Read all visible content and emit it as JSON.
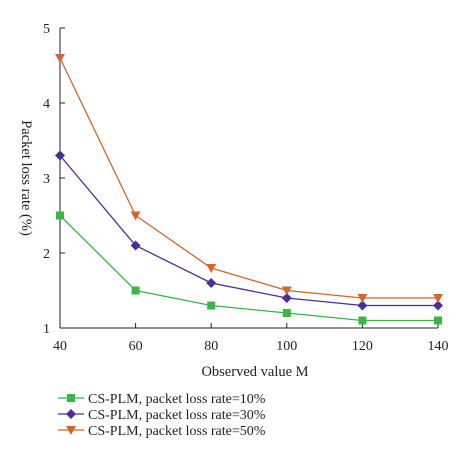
{
  "chart_data": {
    "type": "line",
    "xlabel": "Observed value M",
    "ylabel": "Packet loss rate (%)",
    "xlim": [
      40,
      140
    ],
    "ylim": [
      1,
      5
    ],
    "xticks": [
      40,
      60,
      80,
      100,
      120,
      140
    ],
    "yticks": [
      1,
      2,
      3,
      4,
      5
    ],
    "grid": false,
    "legend_position": "bottom",
    "x": [
      40,
      60,
      80,
      100,
      120,
      140
    ],
    "series": [
      {
        "name": "CS-PLM, packet loss rate=10%",
        "values": [
          2.5,
          1.5,
          1.3,
          1.2,
          1.1,
          1.1
        ],
        "color": "#39b54a",
        "marker": "square"
      },
      {
        "name": "CS-PLM, packet loss rate=30%",
        "values": [
          3.3,
          2.1,
          1.6,
          1.4,
          1.3,
          1.3
        ],
        "color": "#4b2e9a",
        "marker": "diamond"
      },
      {
        "name": "CS-PLM, packet loss rate=50%",
        "values": [
          4.6,
          2.5,
          1.8,
          1.5,
          1.4,
          1.4
        ],
        "color": "#d4652b",
        "marker": "triangle-down"
      }
    ]
  }
}
